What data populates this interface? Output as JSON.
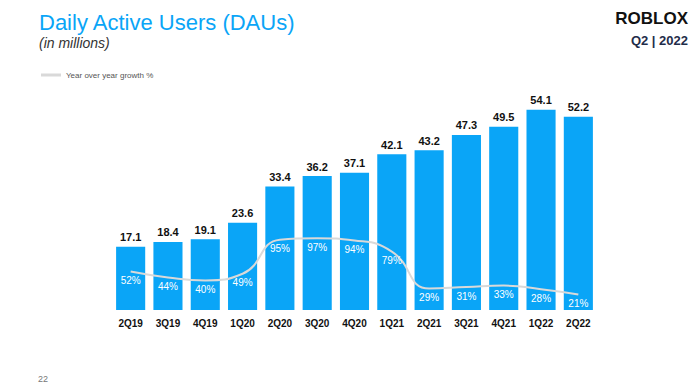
{
  "page": {
    "logo": "ROBLOX",
    "period": "Q2 | 2022",
    "page_number": "22"
  },
  "chart_data": {
    "type": "bar",
    "title": "Daily Active Users (DAUs)",
    "subtitle": "(in millions)",
    "categories": [
      "2Q19",
      "3Q19",
      "4Q19",
      "1Q20",
      "2Q20",
      "3Q20",
      "4Q20",
      "1Q21",
      "2Q21",
      "3Q21",
      "4Q21",
      "1Q22",
      "2Q22"
    ],
    "series": [
      {
        "type": "bar",
        "color": "#0aa5f7",
        "values": [
          17.1,
          18.4,
          19.1,
          23.6,
          33.4,
          36.2,
          37.1,
          42.1,
          43.2,
          47.3,
          49.5,
          54.1,
          52.2
        ]
      },
      {
        "name": "Year over year growth %",
        "type": "line",
        "color": "#d9d9d9",
        "axis": "y2",
        "marker": "none",
        "line_style": "solid",
        "values": [
          52,
          44,
          40,
          49,
          95,
          97,
          94,
          79,
          29,
          31,
          33,
          28,
          21
        ],
        "value_labels": [
          "52%",
          "44%",
          "40%",
          "49%",
          "95%",
          "97%",
          "94%",
          "79%",
          "29%",
          "31%",
          "33%",
          "28%",
          "21%"
        ]
      }
    ],
    "ylim": [
      0,
      60
    ],
    "yticks": [
      0,
      60
    ],
    "y2lim": [
      0,
      300
    ],
    "y2ticks": [
      0,
      300
    ],
    "data_labels": true,
    "tick_labels": "x",
    "grid": false,
    "legend": "top-left"
  }
}
